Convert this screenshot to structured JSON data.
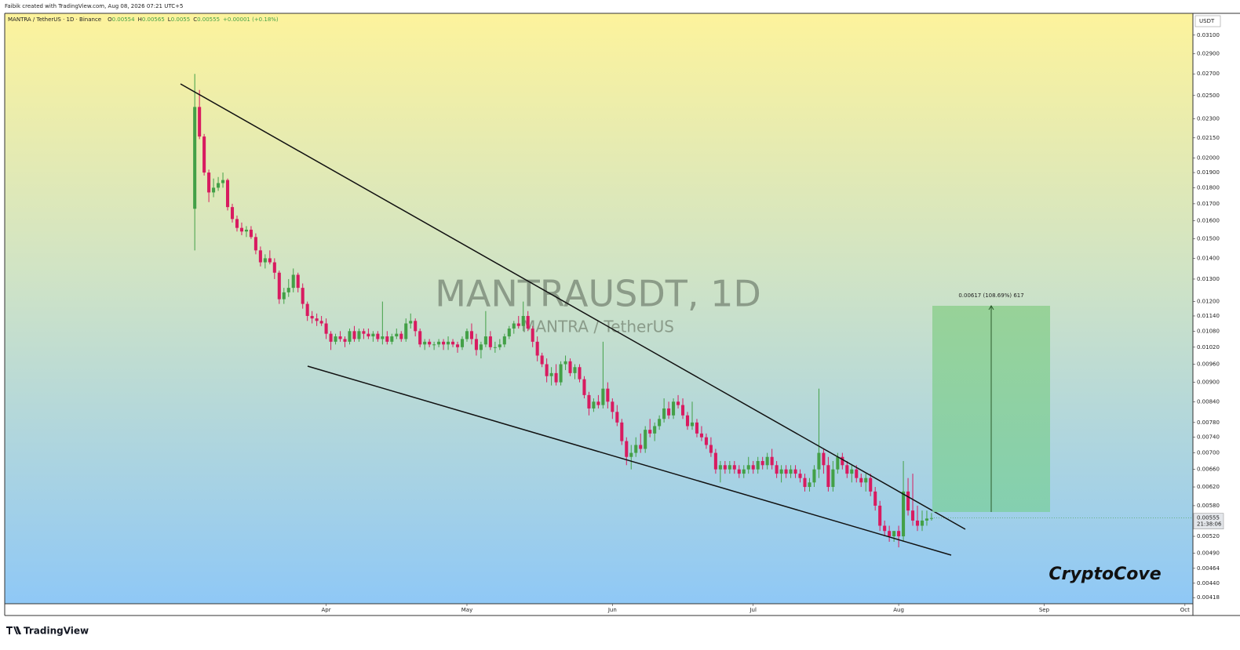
{
  "attribution": "Faibik created with TradingView.com, Aug 08, 2026 07:21 UTC+5",
  "chart_data": {
    "type": "candlestick",
    "symbol": "MANTRA / TetherUS · 1D · Binance",
    "ohlc_labels": [
      "O",
      "H",
      "L",
      "C"
    ],
    "change": "+0.00001 (+0.18%)",
    "watermark": "MANTRAUSDT, 1D",
    "watermark_sub": "MANTRA / TetherUS",
    "currency": "USDT",
    "countdown": "21:38:06",
    "measure_label": "0.00617 (108.69%) 617",
    "signature": "CryptoCove",
    "up_color": "#43a047",
    "down_color": "#d81b60",
    "log_scale": true,
    "grid": false,
    "xlim": [
      -40.5,
      212.7
    ],
    "xticks": [
      {
        "value": 28,
        "label": "Apr"
      },
      {
        "value": 58,
        "label": "May"
      },
      {
        "value": 89,
        "label": "Jun"
      },
      {
        "value": 119,
        "label": "Jul"
      },
      {
        "value": 150,
        "label": "Aug"
      },
      {
        "value": 181,
        "label": "Sep"
      },
      {
        "value": 211,
        "label": "Oct"
      }
    ],
    "ylim": [
      0.00409,
      0.0335
    ],
    "yticks": [
      {
        "value": 0.031,
        "label": "0.03100"
      },
      {
        "value": 0.029,
        "label": "0.02900"
      },
      {
        "value": 0.027,
        "label": "0.02700"
      },
      {
        "value": 0.025,
        "label": "0.02500"
      },
      {
        "value": 0.023,
        "label": "0.02300"
      },
      {
        "value": 0.0215,
        "label": "0.02150"
      },
      {
        "value": 0.02,
        "label": "0.02000"
      },
      {
        "value": 0.019,
        "label": "0.01900"
      },
      {
        "value": 0.018,
        "label": "0.01800"
      },
      {
        "value": 0.017,
        "label": "0.01700"
      },
      {
        "value": 0.016,
        "label": "0.01600"
      },
      {
        "value": 0.015,
        "label": "0.01500"
      },
      {
        "value": 0.014,
        "label": "0.01400"
      },
      {
        "value": 0.013,
        "label": "0.01300"
      },
      {
        "value": 0.012,
        "label": "0.01200"
      },
      {
        "value": 0.0114,
        "label": "0.01140"
      },
      {
        "value": 0.0108,
        "label": "0.01080"
      },
      {
        "value": 0.0102,
        "label": "0.01020"
      },
      {
        "value": 0.0096,
        "label": "0.00960"
      },
      {
        "value": 0.009,
        "label": "0.00900"
      },
      {
        "value": 0.0084,
        "label": "0.00840"
      },
      {
        "value": 0.0078,
        "label": "0.00780"
      },
      {
        "value": 0.0074,
        "label": "0.00740"
      },
      {
        "value": 0.007,
        "label": "0.00700"
      },
      {
        "value": 0.0066,
        "label": "0.00660"
      },
      {
        "value": 0.0062,
        "label": "0.00620"
      },
      {
        "value": 0.0058,
        "label": "0.00580"
      },
      {
        "value": 0.0052,
        "label": "0.00520"
      },
      {
        "value": 0.0049,
        "label": "0.00490"
      },
      {
        "value": 0.00464,
        "label": "0.00464"
      },
      {
        "value": 0.0044,
        "label": "0.00440"
      },
      {
        "value": 0.00418,
        "label": "0.00418"
      }
    ],
    "ohlc": [
      [
        0.0167,
        0.027,
        0.0144,
        0.024
      ],
      [
        0.024,
        0.0255,
        0.0214,
        0.0216
      ],
      [
        0.0216,
        0.0218,
        0.0188,
        0.019
      ],
      [
        0.019,
        0.0192,
        0.0171,
        0.0177
      ],
      [
        0.0177,
        0.0186,
        0.0174,
        0.018
      ],
      [
        0.018,
        0.0187,
        0.0178,
        0.0183
      ],
      [
        0.0183,
        0.019,
        0.018,
        0.0185
      ],
      [
        0.0185,
        0.0186,
        0.0166,
        0.0168
      ],
      [
        0.0168,
        0.017,
        0.0159,
        0.0161
      ],
      [
        0.0161,
        0.0163,
        0.0154,
        0.0156
      ],
      [
        0.0156,
        0.0159,
        0.0152,
        0.0154
      ],
      [
        0.0154,
        0.0157,
        0.0151,
        0.0155
      ],
      [
        0.0155,
        0.0157,
        0.015,
        0.0151
      ],
      [
        0.0151,
        0.0153,
        0.0142,
        0.0144
      ],
      [
        0.0144,
        0.0146,
        0.0136,
        0.0138
      ],
      [
        0.0138,
        0.0142,
        0.0135,
        0.014
      ],
      [
        0.014,
        0.0144,
        0.0137,
        0.0138
      ],
      [
        0.0138,
        0.014,
        0.013,
        0.0133
      ],
      [
        0.0133,
        0.0134,
        0.0119,
        0.0121
      ],
      [
        0.0121,
        0.0126,
        0.0119,
        0.0124
      ],
      [
        0.0124,
        0.013,
        0.0122,
        0.0126
      ],
      [
        0.0126,
        0.0135,
        0.0124,
        0.0132
      ],
      [
        0.0132,
        0.0133,
        0.0124,
        0.0126
      ],
      [
        0.0126,
        0.0128,
        0.0117,
        0.0119
      ],
      [
        0.0119,
        0.012,
        0.0112,
        0.0114
      ],
      [
        0.0114,
        0.0116,
        0.0111,
        0.0113
      ],
      [
        0.0113,
        0.0115,
        0.011,
        0.0112
      ],
      [
        0.0112,
        0.0114,
        0.011,
        0.0111
      ],
      [
        0.0111,
        0.0113,
        0.0105,
        0.0107
      ],
      [
        0.0107,
        0.0108,
        0.0101,
        0.0104
      ],
      [
        0.0104,
        0.0107,
        0.0103,
        0.0106
      ],
      [
        0.0106,
        0.0108,
        0.0104,
        0.0105
      ],
      [
        0.0105,
        0.0106,
        0.0102,
        0.0104
      ],
      [
        0.0104,
        0.0109,
        0.0103,
        0.0108
      ],
      [
        0.0108,
        0.011,
        0.0104,
        0.0105
      ],
      [
        0.0105,
        0.0109,
        0.0104,
        0.0108
      ],
      [
        0.0108,
        0.0109,
        0.0105,
        0.0107
      ],
      [
        0.0107,
        0.0109,
        0.0105,
        0.0106
      ],
      [
        0.0106,
        0.0108,
        0.0104,
        0.0107
      ],
      [
        0.0107,
        0.0108,
        0.0104,
        0.0105
      ],
      [
        0.0105,
        0.012,
        0.0103,
        0.0106
      ],
      [
        0.0106,
        0.0108,
        0.0103,
        0.0104
      ],
      [
        0.0104,
        0.0107,
        0.0103,
        0.0106
      ],
      [
        0.0106,
        0.0109,
        0.0105,
        0.0107
      ],
      [
        0.0107,
        0.0108,
        0.0104,
        0.0105
      ],
      [
        0.0105,
        0.0113,
        0.0104,
        0.0111
      ],
      [
        0.0111,
        0.0115,
        0.0109,
        0.0112
      ],
      [
        0.0112,
        0.0113,
        0.0106,
        0.0108
      ],
      [
        0.0108,
        0.0109,
        0.0102,
        0.0103
      ],
      [
        0.0103,
        0.0105,
        0.0101,
        0.0104
      ],
      [
        0.0104,
        0.0105,
        0.0102,
        0.0103
      ],
      [
        0.0103,
        0.0104,
        0.0101,
        0.0103
      ],
      [
        0.0103,
        0.0105,
        0.0102,
        0.0104
      ],
      [
        0.0104,
        0.0105,
        0.0101,
        0.0103
      ],
      [
        0.0103,
        0.0106,
        0.0101,
        0.0104
      ],
      [
        0.0104,
        0.0105,
        0.0102,
        0.0103
      ],
      [
        0.0103,
        0.0104,
        0.01,
        0.0102
      ],
      [
        0.0102,
        0.0106,
        0.0101,
        0.0105
      ],
      [
        0.0105,
        0.0109,
        0.0104,
        0.0108
      ],
      [
        0.0108,
        0.0111,
        0.0103,
        0.0105
      ],
      [
        0.0105,
        0.0107,
        0.0099,
        0.0101
      ],
      [
        0.0101,
        0.0104,
        0.0098,
        0.0103
      ],
      [
        0.0103,
        0.0116,
        0.0102,
        0.0106
      ],
      [
        0.0106,
        0.0108,
        0.0101,
        0.0102
      ],
      [
        0.0102,
        0.0104,
        0.01,
        0.0102
      ],
      [
        0.0102,
        0.0105,
        0.0101,
        0.0103
      ],
      [
        0.0103,
        0.0107,
        0.0102,
        0.0106
      ],
      [
        0.0106,
        0.011,
        0.0105,
        0.0109
      ],
      [
        0.0109,
        0.0112,
        0.0107,
        0.0111
      ],
      [
        0.0111,
        0.0114,
        0.0109,
        0.011
      ],
      [
        0.011,
        0.012,
        0.0108,
        0.0114
      ],
      [
        0.0114,
        0.0116,
        0.0108,
        0.0109
      ],
      [
        0.0109,
        0.011,
        0.0102,
        0.0104
      ],
      [
        0.0104,
        0.0106,
        0.0097,
        0.0099
      ],
      [
        0.0099,
        0.01,
        0.0095,
        0.0096
      ],
      [
        0.0096,
        0.0098,
        0.009,
        0.0092
      ],
      [
        0.0092,
        0.0095,
        0.0089,
        0.0093
      ],
      [
        0.0093,
        0.0096,
        0.0089,
        0.009
      ],
      [
        0.009,
        0.0097,
        0.0089,
        0.0096
      ],
      [
        0.0096,
        0.0099,
        0.0094,
        0.0097
      ],
      [
        0.0097,
        0.0098,
        0.0092,
        0.0093
      ],
      [
        0.0093,
        0.0096,
        0.0091,
        0.0095
      ],
      [
        0.0095,
        0.0096,
        0.009,
        0.0091
      ],
      [
        0.0091,
        0.0092,
        0.0085,
        0.0086
      ],
      [
        0.0086,
        0.0087,
        0.008,
        0.0082
      ],
      [
        0.0082,
        0.0085,
        0.0081,
        0.0084
      ],
      [
        0.0084,
        0.0086,
        0.0082,
        0.0083
      ],
      [
        0.0083,
        0.0104,
        0.0082,
        0.0088
      ],
      [
        0.0088,
        0.009,
        0.0082,
        0.0084
      ],
      [
        0.0084,
        0.0085,
        0.0079,
        0.0081
      ],
      [
        0.0081,
        0.0083,
        0.0077,
        0.0078
      ],
      [
        0.0078,
        0.0079,
        0.0072,
        0.0073
      ],
      [
        0.0073,
        0.0074,
        0.0067,
        0.0069
      ],
      [
        0.0069,
        0.0072,
        0.0066,
        0.007
      ],
      [
        0.007,
        0.0074,
        0.0069,
        0.0072
      ],
      [
        0.0072,
        0.0075,
        0.007,
        0.0071
      ],
      [
        0.0071,
        0.0077,
        0.007,
        0.0076
      ],
      [
        0.0076,
        0.0079,
        0.0074,
        0.0075
      ],
      [
        0.0075,
        0.0078,
        0.0073,
        0.0077
      ],
      [
        0.0077,
        0.008,
        0.0076,
        0.0079
      ],
      [
        0.0079,
        0.0085,
        0.0078,
        0.0082
      ],
      [
        0.0082,
        0.0084,
        0.0079,
        0.008
      ],
      [
        0.008,
        0.0085,
        0.0079,
        0.0084
      ],
      [
        0.0084,
        0.0086,
        0.0082,
        0.0083
      ],
      [
        0.0083,
        0.0085,
        0.0079,
        0.008
      ],
      [
        0.008,
        0.0081,
        0.0076,
        0.0077
      ],
      [
        0.0077,
        0.0084,
        0.0076,
        0.0078
      ],
      [
        0.0078,
        0.0079,
        0.0074,
        0.0075
      ],
      [
        0.0075,
        0.0077,
        0.0073,
        0.0074
      ],
      [
        0.0074,
        0.0075,
        0.0071,
        0.0072
      ],
      [
        0.0072,
        0.0074,
        0.0069,
        0.007
      ],
      [
        0.007,
        0.0071,
        0.0065,
        0.0066
      ],
      [
        0.0066,
        0.0068,
        0.0063,
        0.0067
      ],
      [
        0.0067,
        0.0068,
        0.0065,
        0.0066
      ],
      [
        0.0066,
        0.0068,
        0.0065,
        0.0067
      ],
      [
        0.0067,
        0.0068,
        0.0065,
        0.0066
      ],
      [
        0.0066,
        0.0067,
        0.0064,
        0.0065
      ],
      [
        0.0065,
        0.0067,
        0.0064,
        0.0066
      ],
      [
        0.0066,
        0.0069,
        0.0065,
        0.0067
      ],
      [
        0.0067,
        0.0068,
        0.0065,
        0.0066
      ],
      [
        0.0066,
        0.0069,
        0.0065,
        0.0068
      ],
      [
        0.0068,
        0.0069,
        0.0066,
        0.0067
      ],
      [
        0.0067,
        0.007,
        0.0066,
        0.0069
      ],
      [
        0.0069,
        0.0071,
        0.0066,
        0.0067
      ],
      [
        0.0067,
        0.0068,
        0.0064,
        0.0065
      ],
      [
        0.0065,
        0.0067,
        0.0063,
        0.0066
      ],
      [
        0.0066,
        0.0067,
        0.0064,
        0.0065
      ],
      [
        0.0065,
        0.0067,
        0.0064,
        0.0066
      ],
      [
        0.0066,
        0.0067,
        0.0064,
        0.0065
      ],
      [
        0.0065,
        0.0066,
        0.0063,
        0.0064
      ],
      [
        0.0064,
        0.0065,
        0.0061,
        0.0062
      ],
      [
        0.0062,
        0.0064,
        0.0061,
        0.0063
      ],
      [
        0.0063,
        0.0067,
        0.0062,
        0.0066
      ],
      [
        0.0066,
        0.0088,
        0.0064,
        0.007
      ],
      [
        0.007,
        0.0071,
        0.0065,
        0.0067
      ],
      [
        0.0067,
        0.0069,
        0.0061,
        0.0062
      ],
      [
        0.0062,
        0.0068,
        0.0061,
        0.0066
      ],
      [
        0.0066,
        0.007,
        0.0065,
        0.0069
      ],
      [
        0.0069,
        0.007,
        0.0066,
        0.0067
      ],
      [
        0.0067,
        0.0068,
        0.0064,
        0.0065
      ],
      [
        0.0065,
        0.0067,
        0.0063,
        0.0066
      ],
      [
        0.0066,
        0.0067,
        0.0063,
        0.0064
      ],
      [
        0.0064,
        0.0065,
        0.0062,
        0.0063
      ],
      [
        0.0063,
        0.0065,
        0.0061,
        0.0064
      ],
      [
        0.0064,
        0.0065,
        0.006,
        0.0061
      ],
      [
        0.0061,
        0.0062,
        0.0057,
        0.0058
      ],
      [
        0.0058,
        0.0059,
        0.0053,
        0.0054
      ],
      [
        0.0054,
        0.0055,
        0.0052,
        0.0053
      ],
      [
        0.0053,
        0.0054,
        0.0051,
        0.0052
      ],
      [
        0.0052,
        0.0053,
        0.0051,
        0.0053
      ],
      [
        0.0053,
        0.0054,
        0.005,
        0.0052
      ],
      [
        0.0052,
        0.0068,
        0.0051,
        0.0061
      ],
      [
        0.0061,
        0.0064,
        0.0056,
        0.0057
      ],
      [
        0.0057,
        0.0065,
        0.0054,
        0.0055
      ],
      [
        0.0055,
        0.0058,
        0.0053,
        0.0054
      ],
      [
        0.0054,
        0.0057,
        0.0053,
        0.0055
      ],
      [
        0.0055,
        0.0057,
        0.0054,
        0.00554
      ],
      [
        0.00554,
        0.00565,
        0.0055,
        0.00555
      ]
    ]
  },
  "footer": {
    "logo": "TradingView"
  }
}
